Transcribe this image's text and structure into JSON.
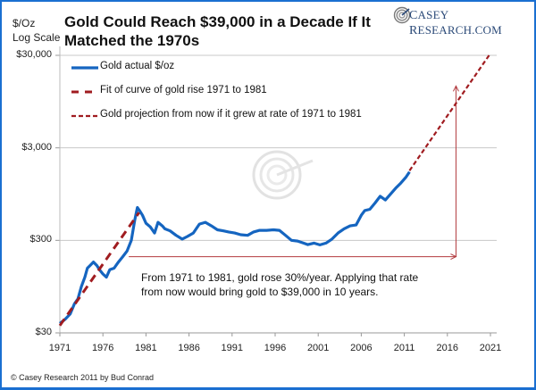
{
  "chart_data": {
    "type": "line",
    "title": "Gold Could Reach $39,000 in a Decade If It Matched the 1970s",
    "ylabel": "$/Oz Log Scale",
    "xlabel": "",
    "y_scale": "log",
    "ylim": [
      30,
      30000
    ],
    "xlim": [
      1971,
      2021
    ],
    "yticks": [
      {
        "value": 30,
        "label": "$30"
      },
      {
        "value": 300,
        "label": "$300"
      },
      {
        "value": 3000,
        "label": "$3,000"
      },
      {
        "value": 30000,
        "label": "$30,000"
      }
    ],
    "xticks": [
      {
        "value": 1971,
        "label": "1971"
      },
      {
        "value": 1976,
        "label": "1976"
      },
      {
        "value": 1981,
        "label": "1981"
      },
      {
        "value": 1986,
        "label": "1986"
      },
      {
        "value": 1991,
        "label": "1991"
      },
      {
        "value": 1996,
        "label": "1996"
      },
      {
        "value": 2001,
        "label": "2001"
      },
      {
        "value": 2006,
        "label": "2006"
      },
      {
        "value": 2011,
        "label": "2011"
      },
      {
        "value": 2016,
        "label": "2016"
      },
      {
        "value": 2021,
        "label": "2021"
      }
    ],
    "grid": "horizontal",
    "legend_position": "top-left",
    "series": [
      {
        "name": "Gold actual $/oz",
        "style": "solid",
        "color": "#1565c0",
        "x": [
          1971.0,
          1971.6,
          1972.2,
          1972.7,
          1973.1,
          1973.5,
          1973.9,
          1974.2,
          1974.5,
          1974.9,
          1975.3,
          1975.6,
          1976.0,
          1976.4,
          1976.8,
          1977.3,
          1977.8,
          1978.3,
          1978.8,
          1979.3,
          1979.7,
          1980.0,
          1980.3,
          1980.6,
          1981.0,
          1981.5,
          1982.0,
          1982.4,
          1982.9,
          1983.2,
          1983.8,
          1984.5,
          1985.2,
          1985.8,
          1986.5,
          1987.2,
          1987.9,
          1988.6,
          1989.3,
          1990.0,
          1990.6,
          1991.3,
          1992.0,
          1992.8,
          1993.5,
          1994.2,
          1995.0,
          1995.8,
          1996.5,
          1997.2,
          1997.9,
          1998.6,
          1999.3,
          1999.8,
          2000.5,
          2001.2,
          2001.9,
          2002.6,
          2003.3,
          2004.0,
          2004.7,
          2005.4,
          2006.0,
          2006.4,
          2007.0,
          2007.6,
          2008.2,
          2008.8,
          2009.4,
          2010.0,
          2010.6,
          2011.2,
          2011.6
        ],
        "values": [
          38,
          42,
          48,
          62,
          70,
          95,
          120,
          150,
          160,
          175,
          160,
          145,
          130,
          120,
          145,
          150,
          175,
          200,
          230,
          300,
          500,
          680,
          620,
          560,
          460,
          420,
          360,
          470,
          430,
          400,
          380,
          340,
          310,
          330,
          360,
          450,
          470,
          430,
          390,
          380,
          370,
          360,
          345,
          340,
          370,
          385,
          385,
          390,
          385,
          340,
          300,
          295,
          280,
          270,
          280,
          268,
          280,
          310,
          360,
          400,
          430,
          440,
          560,
          630,
          650,
          760,
          900,
          820,
          950,
          1100,
          1250,
          1450,
          1650
        ]
      },
      {
        "name": "Fit of curve of gold rise 1971 to 1981",
        "style": "long-dash",
        "color": "#a01c20",
        "x": [
          1971,
          1980.2
        ],
        "values": [
          36,
          600
        ]
      },
      {
        "name": "Gold projection from now if it grew at rate of 1971 to 1981",
        "style": "short-dash",
        "color": "#a01c20",
        "x": [
          2011.6,
          2021.0
        ],
        "values": [
          1700,
          31500
        ]
      }
    ],
    "annotations": [
      {
        "text": "From 1971 to 1981, gold rose 30%/year. Applying that rate from now would bring gold to $39,000 in 10 years.",
        "arrow": "horizontal arrow from 1979 to 2017 at ~$200, vertical arrow at 2017 up to ~$14,000"
      }
    ],
    "arrow_values": {
      "horizontal_y": 200,
      "horizontal_x_from": 1979.0,
      "horizontal_x_to": 2017.0,
      "vertical_x": 2017.0,
      "vertical_y_to": 14000
    }
  },
  "header": {
    "title": "Gold Could Reach $39,000 in a Decade If It Matched the 1970s",
    "y_axis_title_line1": "$/Oz",
    "y_axis_title_line2": "Log Scale",
    "logo_text_1": "C",
    "logo_text_2": "ASEY ",
    "logo_text_3": "R",
    "logo_text_4": "ESEARCH.COM"
  },
  "legend": [
    {
      "label": "Gold actual $/oz",
      "icon": "solid-line"
    },
    {
      "label": "Fit of curve of gold rise 1971 to 1981",
      "icon": "long-dash-line"
    },
    {
      "label": "Gold projection from now if it grew at rate of 1971 to 1981",
      "icon": "short-dash-line"
    }
  ],
  "annotation": {
    "line1": "From 1971 to 1981, gold rose 30%/year. Applying that rate",
    "line2": "from now would bring gold to $39,000 in 10 years."
  },
  "footer": {
    "copyright": "© Casey Research 2011 by Bud Conrad"
  },
  "colors": {
    "frame": "#1a6fd1",
    "gold_line": "#1565c0",
    "fit_line": "#a01c20",
    "arrow": "#b23a3e",
    "grid": "#c8c8c8"
  }
}
